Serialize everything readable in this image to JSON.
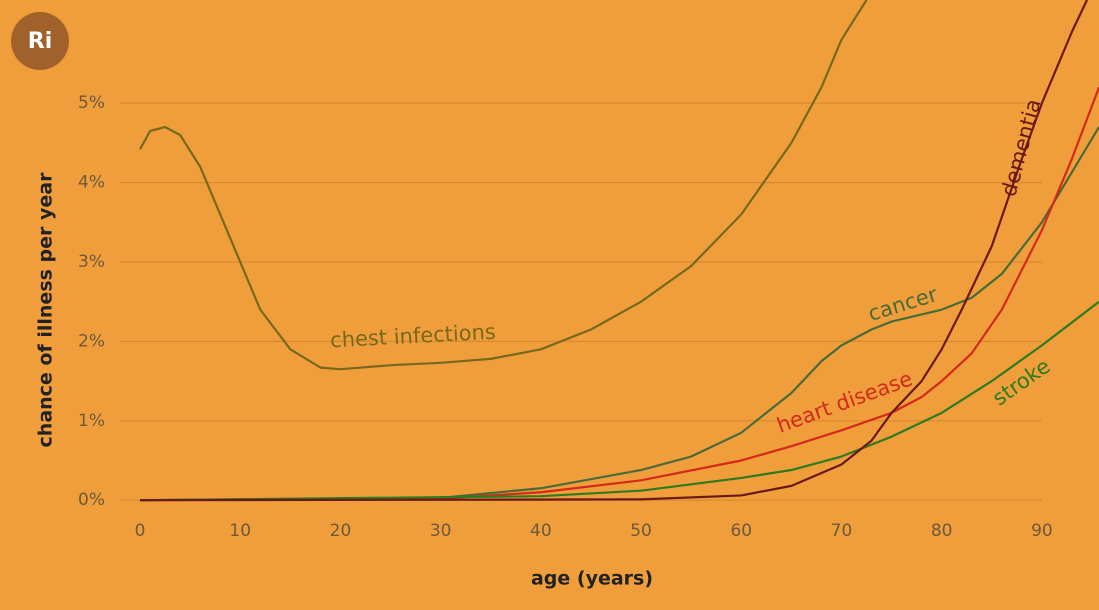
{
  "logo": "Ri",
  "chart_data": {
    "type": "line",
    "y_label": "chance of illness per year",
    "x_label": "age (years)",
    "xlim": [
      -2,
      95.7
    ],
    "ylim": [
      -0.3,
      6.3
    ],
    "xticks": [
      0,
      10,
      20,
      30,
      40,
      50,
      60,
      70,
      80,
      90
    ],
    "yticks": [
      {
        "value": 0,
        "label": "0%"
      },
      {
        "value": 1,
        "label": "1%"
      },
      {
        "value": 2,
        "label": "2%"
      },
      {
        "value": 3,
        "label": "3%"
      },
      {
        "value": 4,
        "label": "4%"
      },
      {
        "value": 5,
        "label": "5%"
      }
    ],
    "grid": true,
    "series": [
      {
        "name": "chest infections",
        "color": "#76691c",
        "x": [
          0,
          1,
          2.5,
          4,
          6,
          8,
          10,
          12,
          15,
          18,
          20,
          25,
          30,
          35,
          40,
          45,
          50,
          55,
          60,
          65,
          68,
          70,
          72.5
        ],
        "values": [
          4.42,
          4.65,
          4.7,
          4.6,
          4.2,
          3.6,
          3.0,
          2.4,
          1.9,
          1.67,
          1.65,
          1.7,
          1.73,
          1.78,
          1.9,
          2.15,
          2.5,
          2.95,
          3.6,
          4.5,
          5.2,
          5.8,
          6.3
        ]
      },
      {
        "name": "cancer",
        "color": "#4a6a38",
        "x": [
          0,
          30,
          40,
          50,
          55,
          60,
          65,
          68,
          70,
          73,
          75,
          80,
          83,
          86,
          90,
          95.7
        ],
        "values": [
          0,
          0.03,
          0.15,
          0.38,
          0.55,
          0.85,
          1.35,
          1.75,
          1.95,
          2.15,
          2.25,
          2.4,
          2.55,
          2.85,
          3.5,
          4.7
        ]
      },
      {
        "name": "heart disease",
        "color": "#d42a1a",
        "x": [
          0,
          30,
          40,
          50,
          60,
          65,
          70,
          75,
          78,
          80,
          83,
          86,
          90,
          93,
          95.7
        ],
        "values": [
          0,
          0.02,
          0.1,
          0.25,
          0.5,
          0.68,
          0.88,
          1.1,
          1.3,
          1.5,
          1.85,
          2.4,
          3.4,
          4.3,
          5.2
        ]
      },
      {
        "name": "stroke",
        "color": "#2e7a1e",
        "x": [
          0,
          40,
          50,
          60,
          65,
          70,
          75,
          80,
          85,
          90,
          95.7
        ],
        "values": [
          0,
          0.05,
          0.12,
          0.28,
          0.38,
          0.55,
          0.8,
          1.1,
          1.5,
          1.95,
          2.5
        ]
      },
      {
        "name": "dementia",
        "color": "#6a1818",
        "x": [
          0,
          50,
          60,
          65,
          70,
          73,
          75,
          78,
          80,
          82,
          85,
          88,
          90,
          93,
          94.5
        ],
        "values": [
          0,
          0.01,
          0.06,
          0.18,
          0.45,
          0.75,
          1.1,
          1.5,
          1.9,
          2.4,
          3.2,
          4.3,
          5.0,
          5.9,
          6.3
        ]
      }
    ]
  }
}
